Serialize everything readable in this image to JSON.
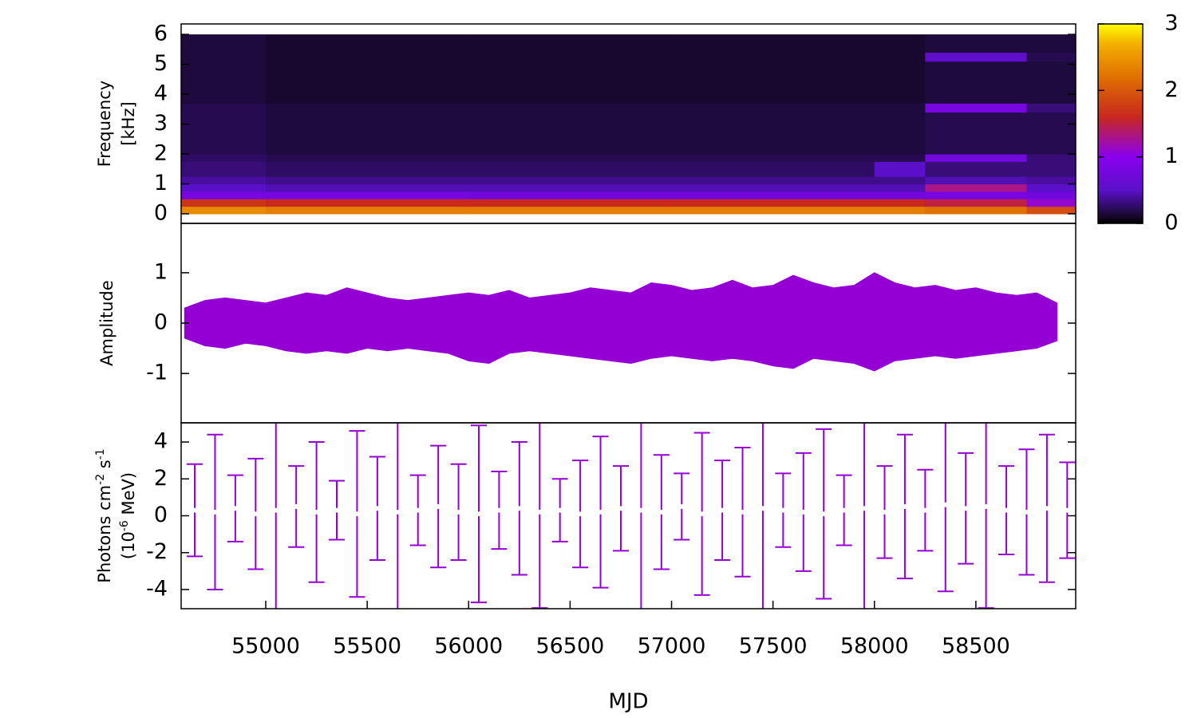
{
  "chart_data": [
    {
      "type": "heatmap",
      "ylabel": [
        [
          {
            "text": "Frequency"
          }
        ],
        [
          {
            "text": "[kHz]"
          }
        ]
      ],
      "xlim": [
        54583,
        58992
      ],
      "ylim": [
        -0.32,
        6.35
      ],
      "yticks": [
        0,
        1,
        2,
        3,
        4,
        5,
        6
      ],
      "x_edges": [
        54583,
        55000,
        56000,
        57000,
        58000,
        58250,
        58750,
        58992
      ],
      "y_edges": [
        0,
        0.25,
        0.5,
        0.75,
        1,
        1.25,
        1.75,
        2,
        3.4,
        3.7,
        5.1,
        5.4,
        6
      ],
      "z": [
        [
          2.4,
          2.3,
          2.3,
          2.3,
          2.3,
          2.2,
          1.9
        ],
        [
          1.7,
          1.6,
          1.6,
          1.6,
          1.6,
          1.5,
          1.1
        ],
        [
          0.8,
          0.8,
          0.75,
          0.75,
          0.75,
          0.8,
          0.75
        ],
        [
          0.5,
          0.45,
          0.45,
          0.45,
          0.45,
          1.3,
          0.5
        ],
        [
          0.4,
          0.35,
          0.35,
          0.35,
          0.35,
          0.45,
          0.4
        ],
        [
          0.3,
          0.25,
          0.25,
          0.25,
          0.5,
          0.3,
          0.3
        ],
        [
          0.25,
          0.2,
          0.2,
          0.2,
          0.2,
          0.75,
          0.3
        ],
        [
          0.2,
          0.15,
          0.15,
          0.15,
          0.15,
          0.2,
          0.2
        ],
        [
          0.2,
          0.15,
          0.15,
          0.15,
          0.15,
          0.8,
          0.3
        ],
        [
          0.15,
          0.12,
          0.12,
          0.12,
          0.12,
          0.15,
          0.15
        ],
        [
          0.15,
          0.12,
          0.12,
          0.12,
          0.12,
          0.55,
          0.2
        ],
        [
          0.15,
          0.12,
          0.12,
          0.12,
          0.12,
          0.15,
          0.15
        ]
      ],
      "cblim": [
        0,
        3
      ],
      "cbticks": [
        0,
        1,
        2,
        3
      ],
      "colorscale": [
        {
          "value": 0,
          "color": "#000000"
        },
        {
          "value": 0.15,
          "color": "#1e0a3c"
        },
        {
          "value": 0.5,
          "color": "#5a10c8"
        },
        {
          "value": 1,
          "color": "#8a00f0"
        },
        {
          "value": 1.6,
          "color": "#c8281e"
        },
        {
          "value": 2.2,
          "color": "#e07000"
        },
        {
          "value": 2.7,
          "color": "#f4b000"
        },
        {
          "value": 3,
          "color": "#ffff00"
        }
      ]
    },
    {
      "type": "band",
      "ylabel": [
        [
          {
            "text": "Amplitude"
          }
        ]
      ],
      "xlim": [
        54583,
        58992
      ],
      "ylim": [
        -1.98,
        1.98
      ],
      "yticks": [
        -1,
        0,
        1
      ],
      "color": "#9400d3",
      "x": [
        54600,
        54700,
        54800,
        54900,
        55000,
        55100,
        55200,
        55300,
        55400,
        55500,
        55600,
        55700,
        55800,
        55900,
        56000,
        56100,
        56200,
        56300,
        56400,
        56500,
        56600,
        56700,
        56800,
        56900,
        57000,
        57100,
        57200,
        57300,
        57400,
        57500,
        57600,
        57700,
        57800,
        57900,
        58000,
        58100,
        58200,
        58300,
        58400,
        58500,
        58600,
        58700,
        58800,
        58900
      ],
      "high": [
        0.3,
        0.45,
        0.5,
        0.45,
        0.4,
        0.5,
        0.6,
        0.55,
        0.7,
        0.6,
        0.5,
        0.45,
        0.5,
        0.55,
        0.6,
        0.55,
        0.65,
        0.5,
        0.55,
        0.6,
        0.7,
        0.65,
        0.6,
        0.8,
        0.75,
        0.65,
        0.7,
        0.85,
        0.7,
        0.75,
        0.95,
        0.8,
        0.7,
        0.75,
        1.0,
        0.8,
        0.7,
        0.75,
        0.65,
        0.7,
        0.6,
        0.55,
        0.6,
        0.4
      ],
      "low": [
        -0.3,
        -0.45,
        -0.5,
        -0.4,
        -0.45,
        -0.55,
        -0.6,
        -0.55,
        -0.6,
        -0.5,
        -0.55,
        -0.5,
        -0.55,
        -0.6,
        -0.75,
        -0.8,
        -0.6,
        -0.55,
        -0.6,
        -0.65,
        -0.7,
        -0.75,
        -0.8,
        -0.7,
        -0.65,
        -0.7,
        -0.75,
        -0.7,
        -0.75,
        -0.85,
        -0.9,
        -0.7,
        -0.75,
        -0.8,
        -0.95,
        -0.75,
        -0.7,
        -0.65,
        -0.7,
        -0.65,
        -0.6,
        -0.55,
        -0.5,
        -0.35
      ]
    },
    {
      "type": "errorbar",
      "ylabel": [
        [
          {
            "text": "Photons cm"
          },
          {
            "text": "-2",
            "sup": true
          },
          {
            "text": " s"
          },
          {
            "text": "-1",
            "sup": true
          }
        ],
        [
          {
            "text": "(10"
          },
          {
            "text": "-6",
            "sup": true
          },
          {
            "text": " MeV)"
          }
        ]
      ],
      "xlabel": "MJD",
      "xlim": [
        54583,
        58992
      ],
      "ylim": [
        -5.04,
        5.04
      ],
      "yticks": [
        -4,
        -2,
        0,
        2,
        4
      ],
      "xticks": [
        55000,
        55500,
        56000,
        56500,
        57000,
        57500,
        58000,
        58500
      ],
      "color": "#9400d3",
      "point_color": "#ffffff",
      "x": [
        54650,
        54750,
        54850,
        54950,
        55050,
        55150,
        55250,
        55350,
        55450,
        55550,
        55650,
        55750,
        55850,
        55950,
        56050,
        56150,
        56250,
        56350,
        56450,
        56550,
        56650,
        56750,
        56850,
        56950,
        57050,
        57150,
        57250,
        57350,
        57450,
        57550,
        57650,
        57750,
        57850,
        57950,
        58050,
        58150,
        58250,
        58350,
        58450,
        58550,
        58650,
        58750,
        58850,
        58950
      ],
      "values": [
        0.3,
        0.2,
        0.4,
        0.1,
        0.3,
        0.5,
        0.2,
        0.3,
        0.1,
        0.4,
        0.2,
        0.3,
        0.5,
        0.2,
        0.1,
        0.3,
        0.4,
        0.2,
        0.3,
        0.1,
        0.2,
        0.4,
        0.3,
        0.2,
        0.5,
        0.1,
        0.3,
        0.2,
        0.4,
        0.3,
        0.2,
        0.1,
        0.3,
        0.4,
        0.2,
        0.5,
        0.3,
        0.6,
        0.4,
        0.5,
        0.3,
        0.2,
        0.4,
        0.3
      ],
      "errors": [
        2.5,
        4.2,
        1.8,
        3.0,
        5.5,
        2.2,
        3.8,
        1.6,
        4.5,
        2.8,
        6.0,
        1.9,
        3.3,
        2.6,
        4.8,
        2.1,
        3.6,
        5.2,
        1.7,
        2.9,
        4.1,
        2.3,
        6.5,
        3.1,
        1.8,
        4.4,
        2.7,
        3.5,
        5.8,
        2.0,
        3.2,
        4.6,
        1.9,
        6.2,
        2.5,
        3.9,
        2.2,
        4.7,
        3.0,
        5.5,
        2.4,
        3.4,
        4.0,
        2.6
      ]
    }
  ]
}
